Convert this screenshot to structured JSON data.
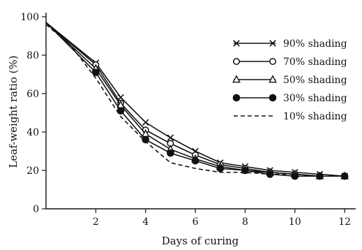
{
  "chart_data": {
    "type": "line",
    "title": "",
    "xlabel": "Days of curing",
    "ylabel": "Leaf-weight ratio (%)",
    "xlim": [
      0,
      12.5
    ],
    "ylim": [
      0,
      100
    ],
    "xticks": [
      2,
      4,
      6,
      8,
      10,
      12
    ],
    "yticks": [
      0,
      20,
      40,
      60,
      80,
      100
    ],
    "grid": false,
    "legend_position": "top-right",
    "series": [
      {
        "name": "90% shading",
        "marker": "x",
        "dashed": false,
        "x": [
          0,
          2,
          3,
          4,
          5,
          6,
          7,
          8,
          9,
          10,
          11,
          12
        ],
        "y": [
          97,
          76,
          58,
          45,
          37,
          30,
          24,
          22,
          20,
          19,
          18,
          17
        ]
      },
      {
        "name": "70% shading",
        "marker": "open-circle",
        "dashed": false,
        "x": [
          0,
          2,
          3,
          4,
          5,
          6,
          7,
          8,
          9,
          10,
          11,
          12
        ],
        "y": [
          97,
          75,
          55,
          41,
          34,
          28,
          23,
          21,
          19,
          18,
          17,
          17
        ]
      },
      {
        "name": "50% shading",
        "marker": "open-triangle",
        "dashed": false,
        "x": [
          0,
          2,
          3,
          4,
          5,
          6,
          7,
          8,
          9,
          10,
          11,
          12
        ],
        "y": [
          97,
          73,
          54,
          39,
          31,
          26,
          22,
          20,
          19,
          18,
          17,
          17
        ]
      },
      {
        "name": "30% shading",
        "marker": "filled-circle",
        "dashed": false,
        "x": [
          0,
          2,
          3,
          4,
          5,
          6,
          7,
          8,
          9,
          10,
          11,
          12
        ],
        "y": [
          97,
          71,
          51,
          36,
          29,
          25,
          21,
          20,
          18,
          17,
          17,
          17
        ]
      },
      {
        "name": "10% shading",
        "marker": "none",
        "dashed": true,
        "x": [
          0,
          1,
          2,
          3,
          4,
          5,
          6,
          7,
          8,
          9,
          10,
          11,
          12
        ],
        "y": [
          96,
          85,
          68,
          48,
          35,
          24,
          21,
          19,
          19,
          18,
          18,
          17,
          17
        ]
      }
    ]
  }
}
